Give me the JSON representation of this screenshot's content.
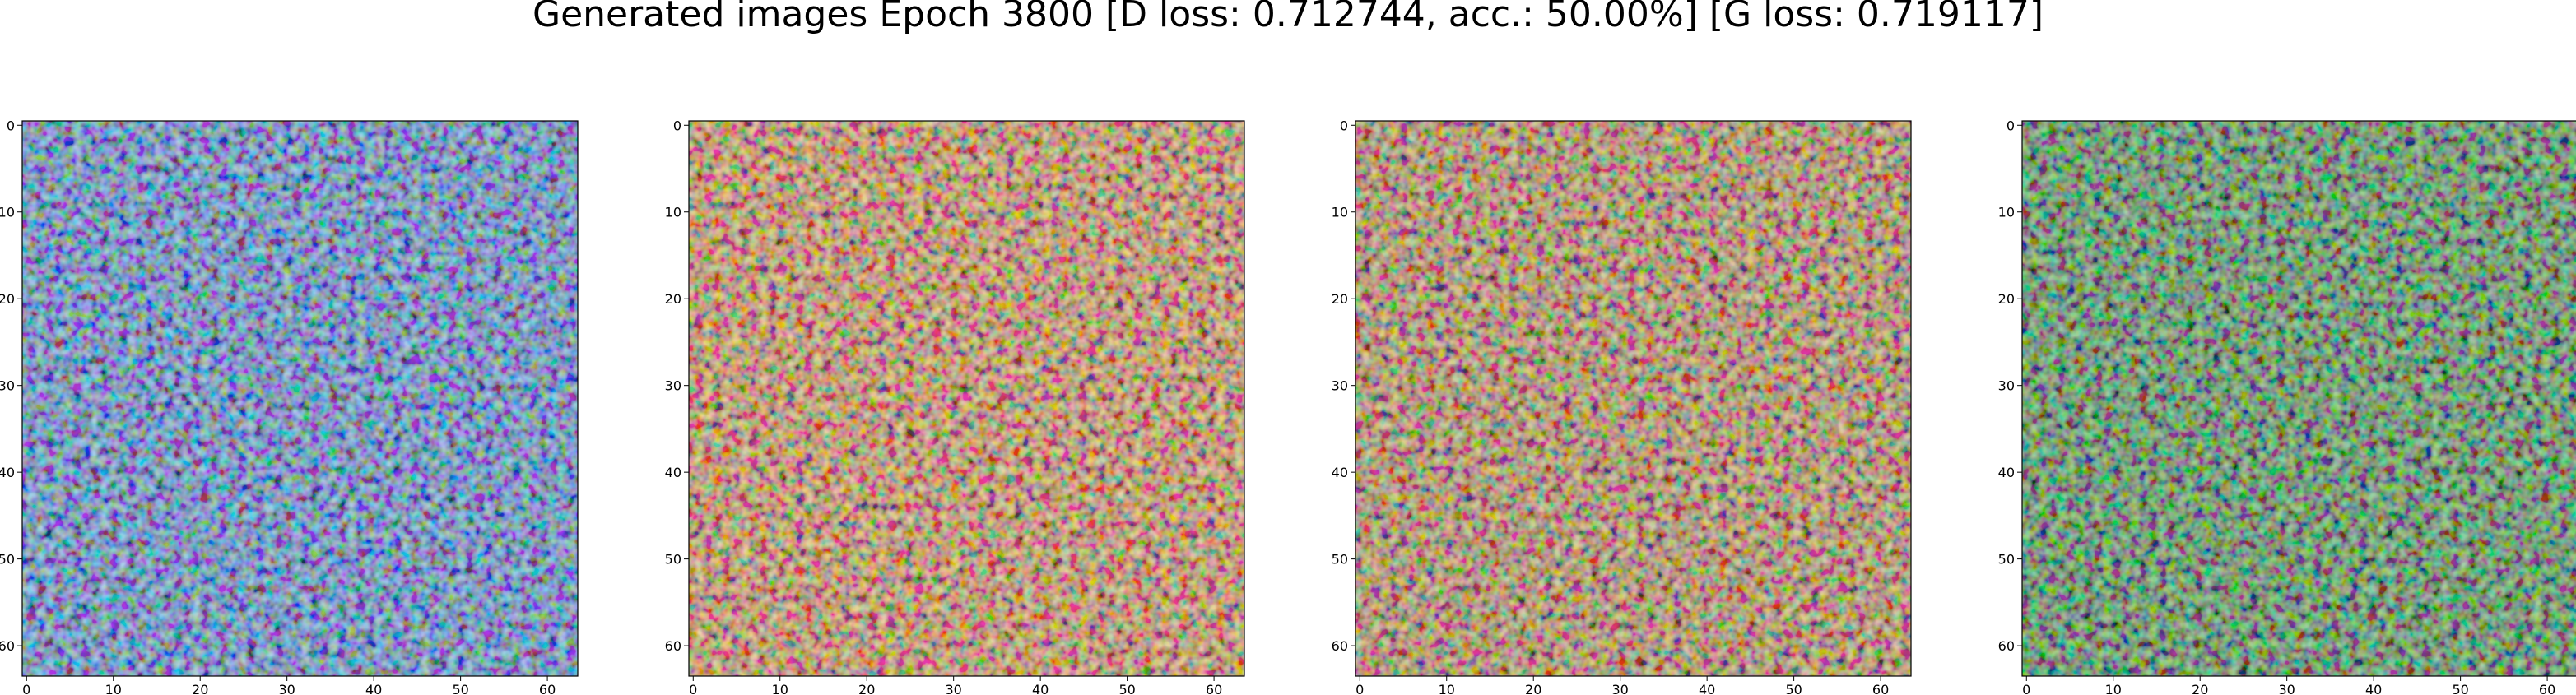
{
  "title": "Generated images Epoch 3800 [D loss: 0.712744, acc.: 50.00%] [G loss: 0.719117]",
  "chart_data": [
    {
      "type": "image",
      "color": "#2f86c8",
      "xlim": [
        -0.5,
        63.5
      ],
      "ylim": [
        63.5,
        -0.5
      ],
      "xticks": [
        0,
        10,
        20,
        30,
        40,
        50,
        60
      ],
      "yticks": [
        0,
        10,
        20,
        30,
        40,
        50,
        60
      ]
    },
    {
      "type": "image",
      "color": "#c98f2c",
      "xlim": [
        -0.5,
        63.5
      ],
      "ylim": [
        63.5,
        -0.5
      ],
      "xticks": [
        0,
        10,
        20,
        30,
        40,
        50,
        60
      ],
      "yticks": [
        0,
        10,
        20,
        30,
        40,
        50,
        60
      ]
    },
    {
      "type": "image",
      "color": "#a8882a",
      "xlim": [
        -0.5,
        63.5
      ],
      "ylim": [
        63.5,
        -0.5
      ],
      "xticks": [
        0,
        10,
        20,
        30,
        40,
        50,
        60
      ],
      "yticks": [
        0,
        10,
        20,
        30,
        40,
        50,
        60
      ]
    },
    {
      "type": "image",
      "color": "#1f8a22",
      "xlim": [
        -0.5,
        63.5
      ],
      "ylim": [
        63.5,
        -0.5
      ],
      "xticks": [
        0,
        10,
        20,
        30,
        40,
        50,
        60
      ],
      "yticks": [
        0,
        10,
        20,
        30,
        40,
        50,
        60
      ]
    }
  ]
}
